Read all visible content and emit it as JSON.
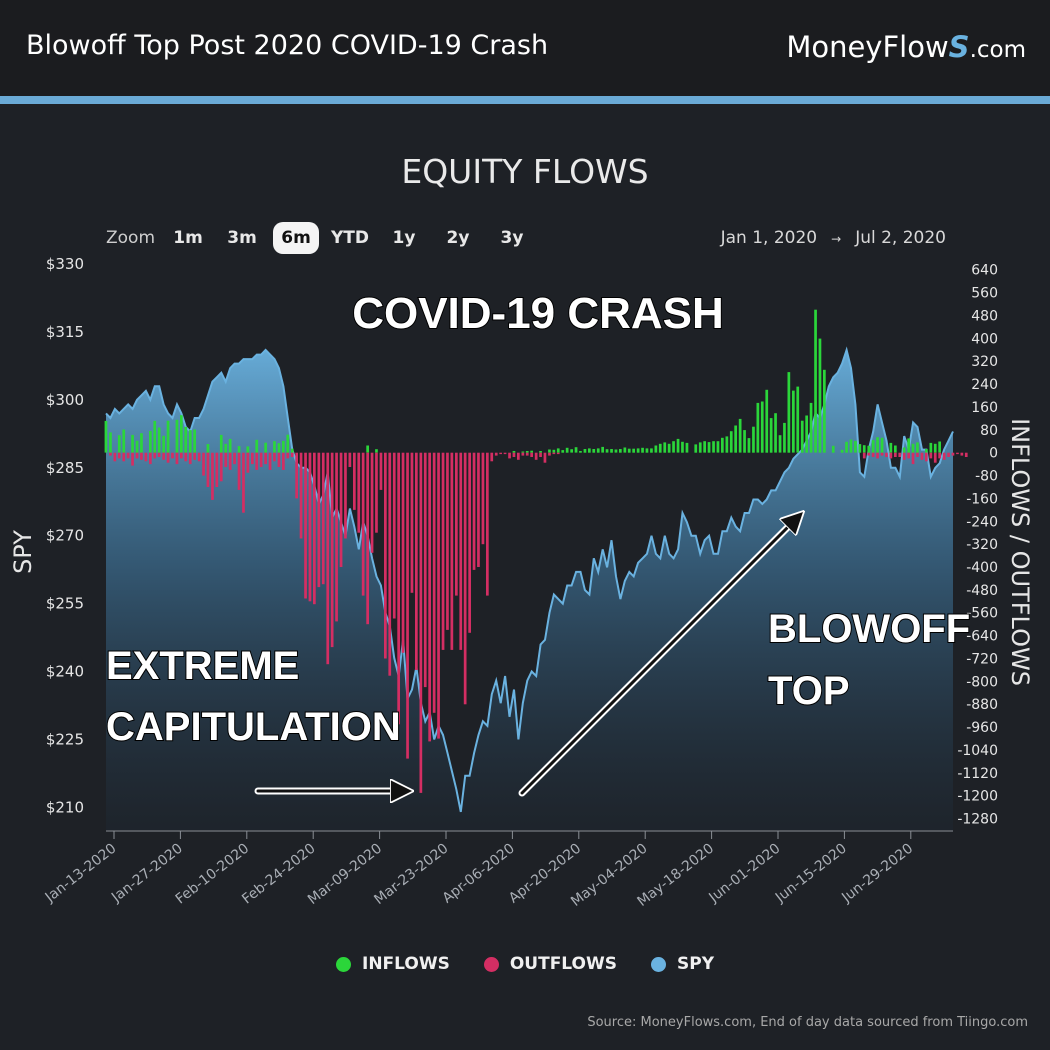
{
  "header": {
    "title": "Blowoff Top Post 2020 COVID-19 Crash",
    "brand_prefix": "MoneyFlow",
    "brand_s": "S",
    "brand_suffix": ".com"
  },
  "toolbar": {
    "zoom_label": "Zoom",
    "zoom_options": [
      "1m",
      "3m",
      "6m",
      "YTD",
      "1y",
      "2y",
      "3y"
    ],
    "zoom_selected": "6m",
    "range_from": "Jan 1, 2020",
    "range_arrow": "→",
    "range_to": "Jul 2, 2020"
  },
  "colors": {
    "inflows": "#2bd63a",
    "outflows": "#d42e63",
    "spy": "#6ab2e0",
    "header_rule": "#6aaad6"
  },
  "annotations": {
    "covid_crash": "COVID-19 CRASH",
    "capitulation_line1": "EXTREME",
    "capitulation_line2": "CAPITULATION",
    "blowoff_line1": "BLOWOFF",
    "blowoff_line2": "TOP"
  },
  "legend": [
    {
      "label": "INFLOWS",
      "color": "#2bd63a"
    },
    {
      "label": "OUTFLOWS",
      "color": "#d42e63"
    },
    {
      "label": "SPY",
      "color": "#6ab2e0"
    }
  ],
  "source": "Source: MoneyFlows.com, End of day data sourced from Tiingo.com",
  "chart_data": {
    "type": "bar",
    "title": "EQUITY FLOWS",
    "ylabel_left": "SPY",
    "ylabel_right": "INFLOWS / OUTFLOWS",
    "ylim_left": [
      205,
      330
    ],
    "ylim_right": [
      -1320,
      660
    ],
    "left_ticks": [
      "$330",
      "$315",
      "$300",
      "$285",
      "$270",
      "$255",
      "$240",
      "$225",
      "$210"
    ],
    "left_tick_values": [
      330,
      315,
      300,
      285,
      270,
      255,
      240,
      225,
      210
    ],
    "right_tick_values": [
      640,
      560,
      480,
      400,
      320,
      240,
      160,
      80,
      0,
      -80,
      -160,
      -240,
      -320,
      -400,
      -480,
      -560,
      -640,
      -720,
      -800,
      -880,
      -960,
      -1040,
      -1120,
      -1200,
      -1280
    ],
    "x_ticks": [
      "Jan-13-2020",
      "Jan-27-2020",
      "Feb-10-2020",
      "Feb-24-2020",
      "Mar-09-2020",
      "Mar-23-2020",
      "Apr-06-2020",
      "Apr-20-2020",
      "May-04-2020",
      "May-18-2020",
      "Jun-01-2020",
      "Jun-15-2020",
      "Jun-29-2020"
    ],
    "grid": false,
    "legend_position": "bottom",
    "series": [
      {
        "name": "SPY",
        "type": "area",
        "values": [
          297,
          296,
          298,
          297,
          298,
          299,
          298,
          300,
          301,
          302,
          300,
          303,
          303,
          299,
          297,
          296,
          299,
          297,
          294,
          293,
          296,
          296,
          298,
          301,
          304,
          305,
          306,
          304,
          307,
          308,
          308,
          309,
          309,
          309,
          310,
          310,
          311,
          310,
          309,
          307,
          303,
          296,
          289,
          286,
          285,
          285,
          284,
          281,
          277,
          279,
          284,
          274,
          276,
          273,
          270,
          276,
          272,
          267,
          273,
          270,
          265,
          261,
          259,
          253,
          250,
          243,
          239,
          247,
          234,
          236,
          241,
          233,
          229,
          231,
          225,
          228,
          226,
          222,
          218,
          214,
          209,
          217,
          217,
          222,
          226,
          229,
          228,
          235,
          238,
          233,
          239,
          230,
          236,
          225,
          233,
          238,
          240,
          239,
          246,
          247,
          253,
          257,
          256,
          255,
          259,
          259,
          262,
          262,
          258,
          257,
          265,
          262,
          267,
          263,
          269,
          261,
          256,
          260,
          262,
          261,
          264,
          265,
          266,
          270,
          266,
          265,
          270,
          266,
          265,
          267,
          275,
          273,
          270,
          270,
          266,
          269,
          270,
          266,
          266,
          271,
          271,
          274,
          272,
          271,
          275,
          275,
          278,
          278,
          277,
          278,
          280,
          280,
          282,
          284,
          285,
          287,
          288,
          289,
          291,
          293,
          297,
          296,
          299,
          303,
          305,
          306,
          308,
          311,
          307,
          299,
          284,
          283,
          289,
          293,
          299,
          295,
          291,
          285,
          285,
          283,
          292,
          289,
          295,
          294,
          289,
          289,
          283,
          285,
          286,
          289,
          291,
          293
        ]
      },
      {
        "name": "INFLOWS",
        "type": "bar",
        "values": [
          111,
          71,
          0,
          61,
          81,
          0,
          62,
          42,
          68,
          0,
          76,
          111,
          88,
          59,
          112,
          0,
          115,
          131,
          90,
          79,
          81,
          0,
          0,
          30,
          0,
          0,
          62,
          31,
          48,
          0,
          23,
          0,
          22,
          0,
          45,
          0,
          35,
          0,
          40,
          33,
          41,
          63,
          14,
          0,
          0,
          0,
          0,
          0,
          0,
          0,
          0,
          0,
          0,
          0,
          0,
          0,
          0,
          0,
          0,
          25,
          0,
          12,
          0,
          0,
          0,
          0,
          0,
          0,
          0,
          0,
          0,
          0,
          0,
          0,
          0,
          0,
          0,
          0,
          0,
          0,
          0,
          0,
          0,
          0,
          0,
          0,
          0,
          0,
          0,
          0,
          0,
          0,
          6,
          0,
          4,
          6,
          7,
          0,
          6,
          0,
          11,
          10,
          15,
          9,
          17,
          12,
          19,
          6,
          13,
          15,
          13,
          15,
          20,
          12,
          13,
          11,
          13,
          18,
          14,
          14,
          15,
          17,
          15,
          15,
          25,
          31,
          36,
          31,
          40,
          48,
          38,
          34,
          0,
          29,
          36,
          40,
          37,
          40,
          40,
          52,
          57,
          75,
          95,
          118,
          79,
          51,
          91,
          174,
          179,
          220,
          121,
          138,
          61,
          104,
          282,
          217,
          231,
          112,
          130,
          174,
          500,
          399,
          290,
          0,
          24,
          0,
          10,
          38,
          46,
          41,
          30,
          26,
          24,
          44,
          54,
          52,
          0,
          34,
          25,
          0,
          18,
          50,
          31,
          36,
          0,
          13,
          34,
          31,
          39,
          0
        ]
      },
      {
        "name": "OUTFLOWS",
        "type": "bar",
        "values": [
          0,
          -10,
          -30,
          -20,
          -30,
          -20,
          -45,
          -20,
          -25,
          -30,
          -40,
          -20,
          -15,
          -25,
          -35,
          -20,
          -40,
          -20,
          -30,
          -40,
          -25,
          -30,
          -80,
          -120,
          -165,
          -120,
          -100,
          -50,
          -60,
          -40,
          -130,
          -210,
          -70,
          -40,
          -60,
          -50,
          -40,
          -60,
          -30,
          -50,
          -60,
          -20,
          -15,
          -160,
          -300,
          -510,
          -520,
          -530,
          -470,
          -460,
          -740,
          -680,
          -590,
          -400,
          -300,
          -50,
          -200,
          -280,
          -500,
          -600,
          -350,
          -280,
          -130,
          -720,
          -780,
          -580,
          -950,
          -700,
          -1070,
          -490,
          -760,
          -1190,
          -820,
          -1010,
          -910,
          -1000,
          -690,
          -620,
          -690,
          -500,
          -690,
          -880,
          -630,
          -410,
          -400,
          -320,
          -500,
          -30,
          -10,
          -5,
          -5,
          -20,
          -15,
          -25,
          -10,
          -10,
          -15,
          -25,
          -15,
          -35,
          -10,
          -5,
          -5,
          0,
          0,
          0,
          0,
          0,
          0,
          0,
          0,
          0,
          0,
          0,
          0,
          0,
          0,
          0,
          0,
          0,
          0,
          0,
          0,
          0,
          0,
          0,
          0,
          0,
          0,
          0,
          0,
          0,
          0,
          0,
          0,
          0,
          0,
          0,
          0,
          0,
          0,
          0,
          0,
          0,
          0,
          0,
          0,
          0,
          0,
          0,
          0,
          0,
          0,
          0,
          0,
          0,
          0,
          0,
          0,
          0,
          0,
          0,
          0,
          0,
          0,
          0,
          0,
          0,
          0,
          0,
          0,
          -20,
          -10,
          -15,
          -20,
          -10,
          -15,
          -20,
          -15,
          -15,
          -25,
          -20,
          -40,
          -15,
          -25,
          -30,
          -20,
          -35,
          -20,
          -25,
          -15,
          -10,
          -5,
          -10,
          -15
        ]
      }
    ]
  }
}
